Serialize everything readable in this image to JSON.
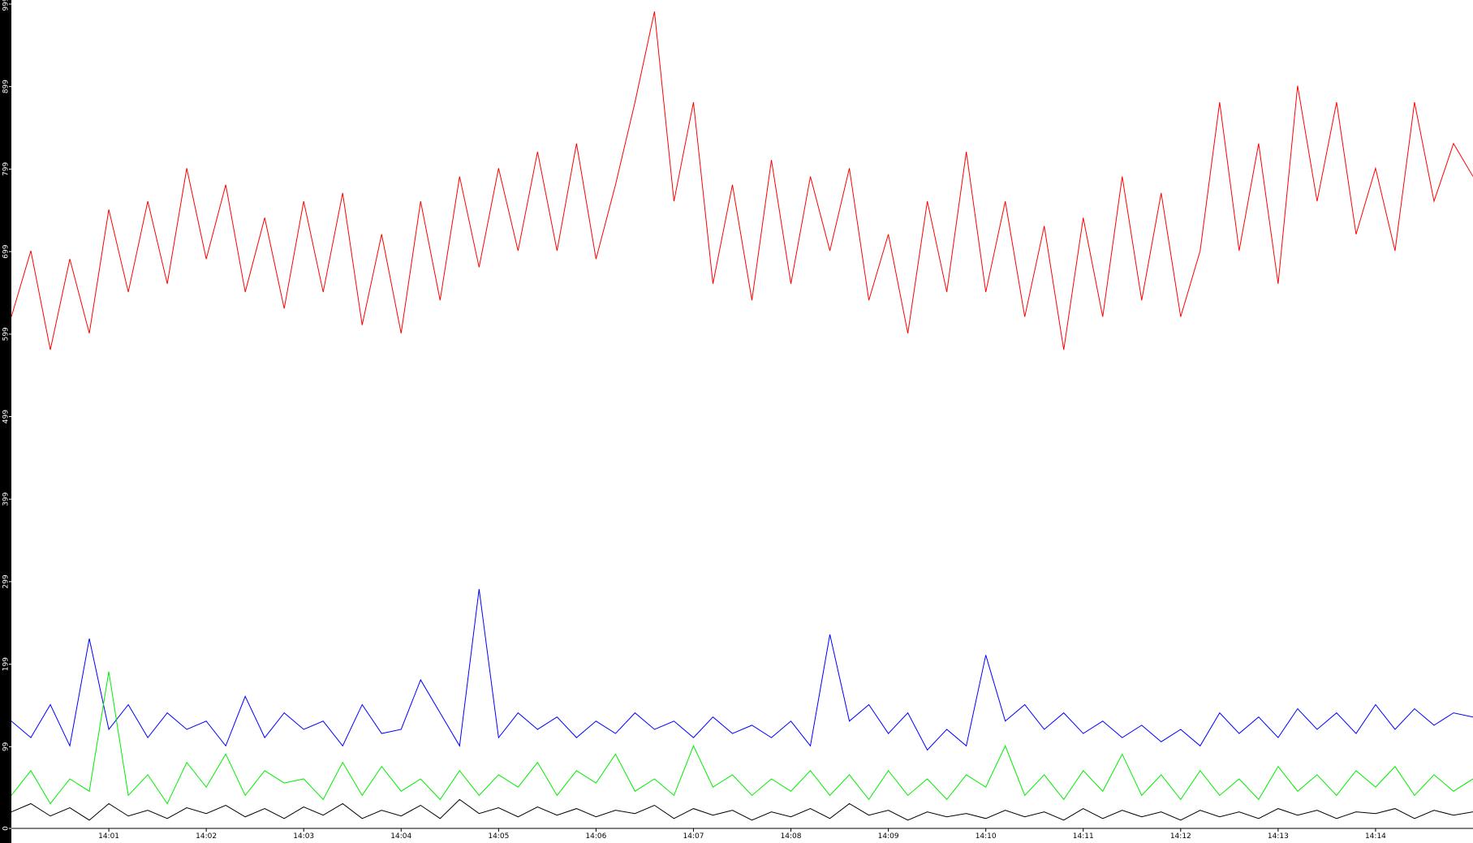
{
  "chart_data": {
    "type": "line",
    "xlim": [
      0,
      15
    ],
    "ylim": [
      0,
      999
    ],
    "xticks": [
      {
        "value": 1,
        "label": "14:01"
      },
      {
        "value": 2,
        "label": "14:02"
      },
      {
        "value": 3,
        "label": "14:03"
      },
      {
        "value": 4,
        "label": "14:04"
      },
      {
        "value": 5,
        "label": "14:05"
      },
      {
        "value": 6,
        "label": "14:06"
      },
      {
        "value": 7,
        "label": "14:07"
      },
      {
        "value": 8,
        "label": "14:08"
      },
      {
        "value": 9,
        "label": "14:09"
      },
      {
        "value": 10,
        "label": "14:10"
      },
      {
        "value": 11,
        "label": "14:11"
      },
      {
        "value": 12,
        "label": "14:12"
      },
      {
        "value": 13,
        "label": "14:13"
      },
      {
        "value": 14,
        "label": "14:14"
      }
    ],
    "yticks": [
      0,
      99,
      199,
      299,
      399,
      499,
      599,
      699,
      799,
      899,
      999
    ],
    "x": [
      0,
      0.2,
      0.4,
      0.6,
      0.8,
      1,
      1.2,
      1.4,
      1.6,
      1.8,
      2,
      2.2,
      2.4,
      2.6,
      2.8,
      3,
      3.2,
      3.4,
      3.6,
      3.8,
      4,
      4.2,
      4.4,
      4.6,
      4.8,
      5,
      5.2,
      5.4,
      5.6,
      5.8,
      6,
      6.2,
      6.4,
      6.6,
      6.8,
      7,
      7.2,
      7.4,
      7.6,
      7.8,
      8,
      8.2,
      8.4,
      8.6,
      8.8,
      9,
      9.2,
      9.4,
      9.6,
      9.8,
      10,
      10.2,
      10.4,
      10.6,
      10.8,
      11,
      11.2,
      11.4,
      11.6,
      11.8,
      12,
      12.2,
      12.4,
      12.6,
      12.8,
      13,
      13.2,
      13.4,
      13.6,
      13.8,
      14,
      14.2,
      14.4,
      14.6,
      14.8,
      15
    ],
    "series": [
      {
        "color": "#ff0000",
        "values": [
          620,
          700,
          580,
          690,
          600,
          750,
          650,
          760,
          660,
          800,
          690,
          780,
          650,
          740,
          630,
          760,
          650,
          770,
          610,
          720,
          600,
          760,
          640,
          790,
          680,
          800,
          700,
          820,
          700,
          830,
          690,
          780,
          880,
          990,
          760,
          880,
          660,
          780,
          640,
          810,
          660,
          790,
          700,
          800,
          640,
          720,
          600,
          760,
          650,
          820,
          650,
          760,
          620,
          730,
          580,
          740,
          620,
          790,
          640,
          770,
          620,
          700,
          880,
          700,
          830,
          660,
          900,
          760,
          880,
          720,
          800,
          700,
          880,
          760,
          830,
          790
        ]
      },
      {
        "color": "#0000ff",
        "values": [
          130,
          110,
          150,
          100,
          230,
          120,
          150,
          110,
          140,
          120,
          130,
          100,
          160,
          110,
          140,
          120,
          130,
          100,
          150,
          115,
          120,
          180,
          140,
          100,
          290,
          110,
          140,
          120,
          135,
          110,
          130,
          115,
          140,
          120,
          130,
          110,
          135,
          115,
          125,
          110,
          130,
          100,
          235,
          130,
          150,
          115,
          140,
          95,
          120,
          100,
          210,
          130,
          150,
          120,
          140,
          115,
          130,
          110,
          125,
          105,
          120,
          100,
          140,
          115,
          135,
          110,
          145,
          120,
          140,
          115,
          150,
          120,
          145,
          125,
          140,
          135
        ]
      },
      {
        "color": "#00ee00",
        "values": [
          40,
          70,
          30,
          60,
          45,
          190,
          40,
          65,
          30,
          80,
          50,
          90,
          40,
          70,
          55,
          60,
          35,
          80,
          40,
          75,
          45,
          60,
          35,
          70,
          40,
          65,
          50,
          80,
          40,
          70,
          55,
          90,
          45,
          60,
          40,
          100,
          50,
          65,
          40,
          60,
          45,
          70,
          40,
          65,
          35,
          70,
          40,
          60,
          35,
          65,
          50,
          100,
          40,
          65,
          35,
          70,
          45,
          90,
          40,
          65,
          35,
          70,
          40,
          60,
          35,
          75,
          45,
          65,
          40,
          70,
          50,
          75,
          40,
          65,
          45,
          60
        ]
      },
      {
        "color": "#000000",
        "values": [
          20,
          30,
          15,
          25,
          10,
          30,
          15,
          22,
          12,
          25,
          18,
          28,
          14,
          24,
          12,
          26,
          16,
          30,
          12,
          22,
          15,
          28,
          12,
          35,
          18,
          25,
          14,
          26,
          16,
          24,
          14,
          22,
          18,
          28,
          12,
          24,
          16,
          22,
          10,
          20,
          14,
          24,
          12,
          30,
          16,
          22,
          10,
          20,
          14,
          18,
          12,
          22,
          14,
          20,
          10,
          24,
          12,
          22,
          14,
          20,
          10,
          22,
          14,
          20,
          12,
          24,
          16,
          22,
          12,
          20,
          18,
          24,
          12,
          22,
          16,
          20
        ]
      }
    ]
  }
}
